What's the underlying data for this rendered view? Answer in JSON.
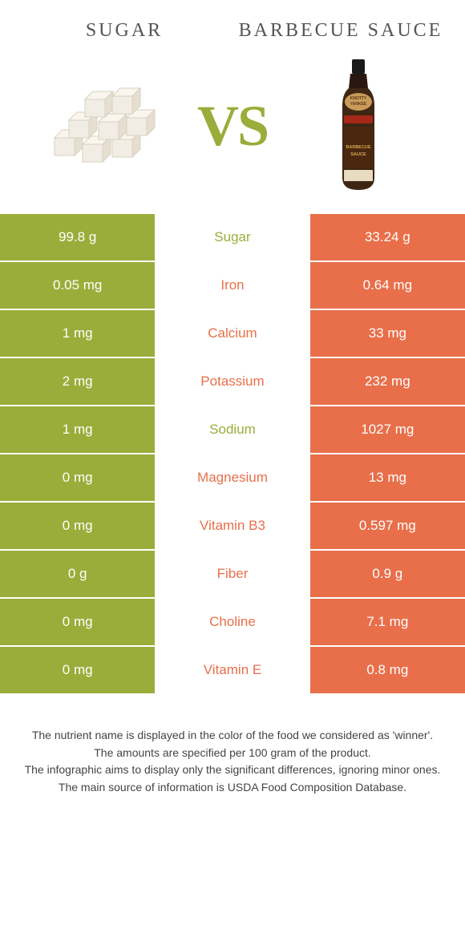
{
  "header": {
    "left_title": "Sugar",
    "right_title": "Barbecue sauce",
    "vs_text": "VS"
  },
  "colors": {
    "left_bg": "#9aad3a",
    "right_bg": "#e86f4a",
    "left_text": "#9aad3a",
    "right_text": "#e86f4a"
  },
  "rows": [
    {
      "left": "99.8 g",
      "label": "Sugar",
      "right": "33.24 g",
      "winner": "left"
    },
    {
      "left": "0.05 mg",
      "label": "Iron",
      "right": "0.64 mg",
      "winner": "right"
    },
    {
      "left": "1 mg",
      "label": "Calcium",
      "right": "33 mg",
      "winner": "right"
    },
    {
      "left": "2 mg",
      "label": "Potassium",
      "right": "232 mg",
      "winner": "right"
    },
    {
      "left": "1 mg",
      "label": "Sodium",
      "right": "1027 mg",
      "winner": "left"
    },
    {
      "left": "0 mg",
      "label": "Magnesium",
      "right": "13 mg",
      "winner": "right"
    },
    {
      "left": "0 mg",
      "label": "Vitamin B3",
      "right": "0.597 mg",
      "winner": "right"
    },
    {
      "left": "0 g",
      "label": "Fiber",
      "right": "0.9 g",
      "winner": "right"
    },
    {
      "left": "0 mg",
      "label": "Choline",
      "right": "7.1 mg",
      "winner": "right"
    },
    {
      "left": "0 mg",
      "label": "Vitamin E",
      "right": "0.8 mg",
      "winner": "right"
    }
  ],
  "footer": {
    "line1": "The nutrient name is displayed in the color of the food we considered as 'winner'.",
    "line2": "The amounts are specified per 100 gram of the product.",
    "line3": "The infographic aims to display only the significant differences, ignoring minor ones.",
    "line4": "The main source of information is USDA Food Composition Database."
  }
}
